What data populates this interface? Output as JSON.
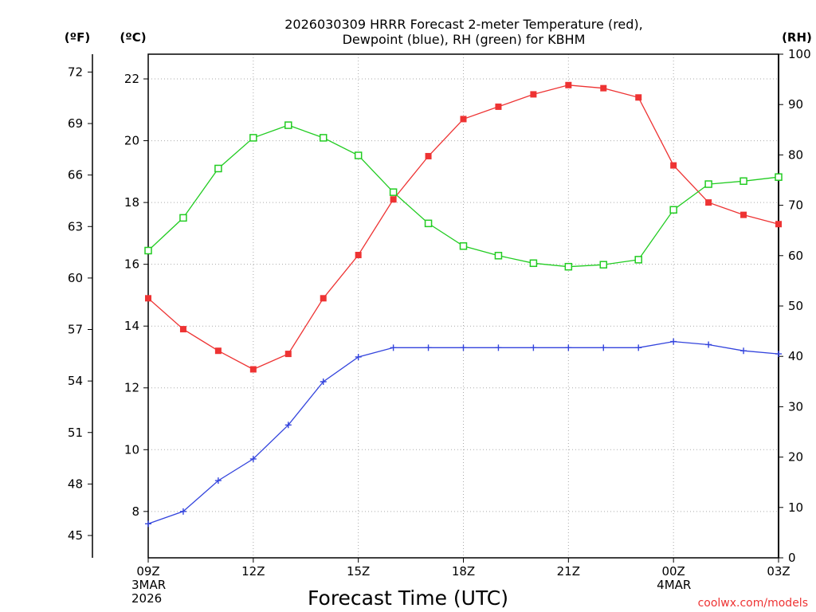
{
  "chart_data": {
    "type": "line",
    "title_line1": "2026030309 HRRR Forecast 2-meter Temperature (red),",
    "title_line2": "Dewpoint (blue), RH (green) for KBHM",
    "xlabel": "Forecast Time (UTC)",
    "credit": "coolwx.com/models",
    "units": {
      "fahrenheit": "(ºF)",
      "celsius": "(ºC)",
      "rh": "(RH)"
    },
    "colors": {
      "temperature": "#ee3333",
      "dewpoint": "#3344dd",
      "rh": "#22cc22"
    },
    "x_hours": [
      0,
      1,
      2,
      3,
      4,
      5,
      6,
      7,
      8,
      9,
      10,
      11,
      12,
      13,
      14,
      15,
      16,
      17,
      18
    ],
    "x_range": [
      0,
      18
    ],
    "x_ticks": [
      {
        "hour": 0,
        "lines": [
          "09Z",
          "3MAR",
          "2026"
        ]
      },
      {
        "hour": 3,
        "lines": [
          "12Z"
        ]
      },
      {
        "hour": 6,
        "lines": [
          "15Z"
        ]
      },
      {
        "hour": 9,
        "lines": [
          "18Z"
        ]
      },
      {
        "hour": 12,
        "lines": [
          "21Z"
        ]
      },
      {
        "hour": 15,
        "lines": [
          "00Z",
          "4MAR"
        ]
      },
      {
        "hour": 18,
        "lines": [
          "03Z"
        ]
      }
    ],
    "ylim_celsius": [
      6.5,
      22.8
    ],
    "yticks_celsius": [
      "8",
      "10",
      "12",
      "14",
      "16",
      "18",
      "20",
      "22"
    ],
    "yticks_fahrenheit": [
      "45",
      "48",
      "51",
      "54",
      "57",
      "60",
      "63",
      "66",
      "69",
      "72"
    ],
    "ylim_rh": [
      0,
      100
    ],
    "yticks_rh": [
      "0",
      "10",
      "20",
      "30",
      "40",
      "50",
      "60",
      "70",
      "80",
      "90",
      "100"
    ],
    "series": [
      {
        "name": "Temperature",
        "axis": "celsius",
        "values": [
          14.9,
          13.9,
          13.2,
          12.6,
          13.1,
          14.9,
          16.3,
          18.1,
          19.5,
          20.7,
          21.1,
          21.5,
          21.8,
          21.7,
          21.4,
          19.2,
          18.0,
          17.6,
          17.3
        ]
      },
      {
        "name": "Dewpoint",
        "axis": "celsius",
        "values": [
          7.6,
          8.0,
          9.0,
          9.7,
          10.8,
          12.2,
          13.0,
          13.3,
          13.3,
          13.3,
          13.3,
          13.3,
          13.3,
          13.3,
          13.3,
          13.5,
          13.4,
          13.2,
          13.1
        ]
      },
      {
        "name": "RH",
        "axis": "rh",
        "values": [
          61,
          67.5,
          77.3,
          83.4,
          85.9,
          83.4,
          79.9,
          72.6,
          66.4,
          61.9,
          60,
          58.5,
          57.8,
          58.2,
          59.2,
          69.1,
          74.2,
          74.8,
          75.6
        ]
      }
    ]
  }
}
